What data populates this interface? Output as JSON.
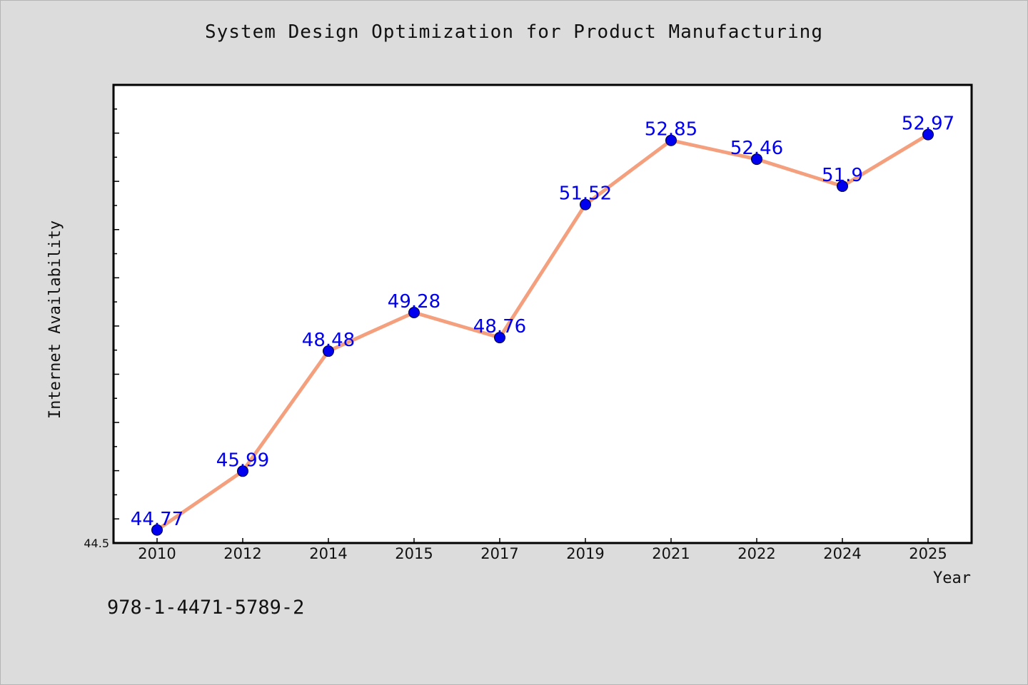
{
  "title": "System Design Optimization for Product Manufacturing",
  "footer_text": "978-1-4471-5789-2",
  "chart_data": {
    "type": "line",
    "title": "System Design Optimization for Product Manufacturing",
    "xlabel": "Year",
    "ylabel": "Internet Availability",
    "categories": [
      "2010",
      "2012",
      "2014",
      "2015",
      "2017",
      "2019",
      "2021",
      "2022",
      "2024",
      "2025"
    ],
    "values": [
      44.77,
      45.99,
      48.48,
      49.28,
      48.76,
      51.52,
      52.85,
      52.46,
      51.9,
      52.97
    ],
    "data_labels": [
      "44.77",
      "45.99",
      "48.48",
      "49.28",
      "48.76",
      "51.52",
      "52.85",
      "52.46",
      "51.9",
      "52.97"
    ],
    "ylim": [
      44.5,
      54.0
    ],
    "y_tick_labels": [
      "44.5"
    ],
    "grid": false,
    "line_color": "#f4a07e",
    "marker_color": "#0000ee",
    "label_color": "#0000ee"
  }
}
